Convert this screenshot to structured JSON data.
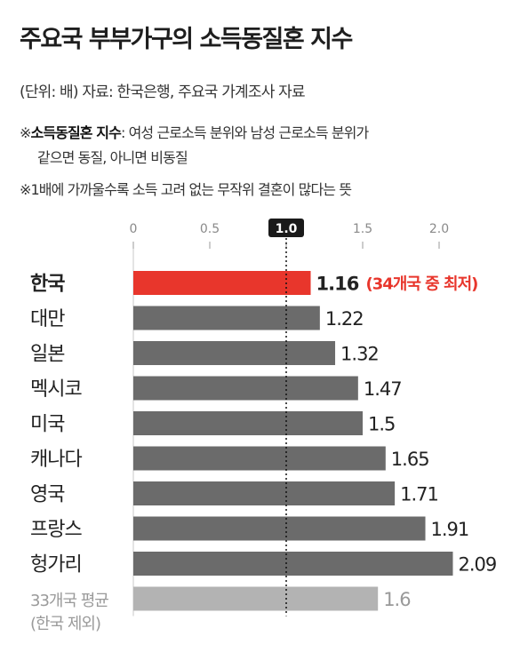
{
  "title": "주요국 부부가구의 소득동질혼 지수",
  "source": "(단위: 배)  자료: 한국은행, 주요국 가계조사 자료",
  "notes": {
    "note1_mark": "※",
    "note1_bold": "소득동질혼 지수",
    "note1_rest": ": 여성 근로소득 분위와 남성 근로소득 분위가",
    "note1_cont": "같으면 동질, 아니면 비동질",
    "note2": "※1배에 가까울수록 소득 고려 없는 무작위 결혼이 많다는 뜻"
  },
  "chart_data": {
    "type": "bar",
    "orientation": "horizontal",
    "categories": [
      "한국",
      "대만",
      "일본",
      "멕시코",
      "미국",
      "캐나다",
      "영국",
      "프랑스",
      "헝가리",
      "33개국 평균"
    ],
    "category_sublabels": [
      "",
      "",
      "",
      "",
      "",
      "",
      "",
      "",
      "",
      "(한국 제외)"
    ],
    "values": [
      1.16,
      1.22,
      1.32,
      1.47,
      1.5,
      1.65,
      1.71,
      1.91,
      2.09,
      1.6
    ],
    "value_labels": [
      "1.16",
      "1.22",
      "1.32",
      "1.47",
      "1.5",
      "1.65",
      "1.71",
      "1.91",
      "2.09",
      "1.6"
    ],
    "highlight_annotation": "(34개국 중 최저)",
    "xlim": [
      0,
      2.0
    ],
    "xticks": [
      0,
      0.5,
      1.0,
      1.5,
      2.0
    ],
    "xtick_labels": [
      "0",
      "0.5",
      "1.0",
      "1.5",
      "2.0"
    ],
    "reference_line": 1.0,
    "colors": {
      "highlight": "#e8362c",
      "bar": "#6b6b6b",
      "average": "#b3b3b3",
      "annotation": "#e8362c"
    }
  }
}
